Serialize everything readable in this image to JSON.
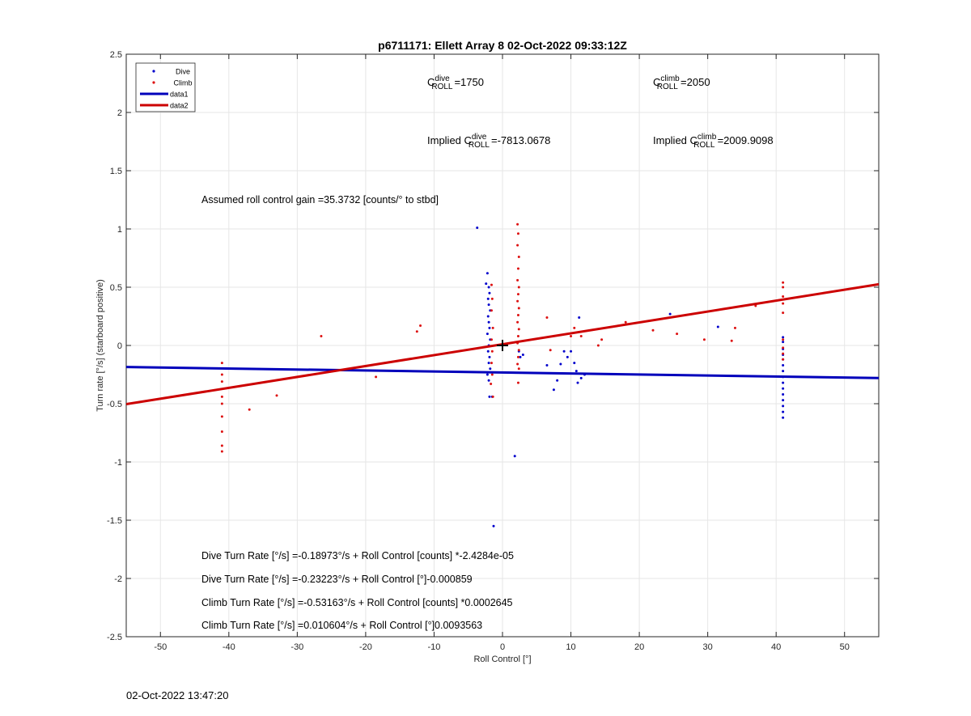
{
  "timestamp": "02-Oct-2022 13:47:20",
  "chart_data": {
    "type": "scatter",
    "title": "p6711171: Ellett Array 8 02-Oct-2022 09:33:12Z",
    "xlabel": "Roll Control [°]",
    "ylabel": "Turn rate [°/s] (starboard positive)",
    "xlim": [
      -55,
      55
    ],
    "ylim": [
      -2.5,
      2.5
    ],
    "x_ticks": [
      -50,
      -40,
      -30,
      -20,
      -10,
      0,
      10,
      20,
      30,
      40,
      50
    ],
    "y_ticks": [
      -2.5,
      -2,
      -1.5,
      -1,
      -0.5,
      0,
      0.5,
      1,
      1.5,
      2,
      2.5
    ],
    "grid": true,
    "legend_position": "top-left",
    "legend": [
      "Dive",
      "Climb",
      "data1",
      "data2"
    ],
    "colors": {
      "dive": "#0000cc",
      "climb": "#dd1111",
      "data1": "#0000bb",
      "data2": "#cc0000"
    },
    "series": [
      {
        "name": "Dive",
        "kind": "points",
        "points": [
          [
            -3.7,
            1.01
          ],
          [
            -2.2,
            0.62
          ],
          [
            -2.4,
            0.53
          ],
          [
            -2.0,
            0.5
          ],
          [
            -1.9,
            0.45
          ],
          [
            -2.1,
            0.4
          ],
          [
            -2.0,
            0.35
          ],
          [
            -1.8,
            0.3
          ],
          [
            -2.1,
            0.25
          ],
          [
            -2.0,
            0.2
          ],
          [
            -1.9,
            0.15
          ],
          [
            -2.2,
            0.1
          ],
          [
            -1.8,
            0.05
          ],
          [
            -2.0,
            0.0
          ],
          [
            -2.1,
            -0.05
          ],
          [
            -1.9,
            -0.1
          ],
          [
            -2.0,
            -0.15
          ],
          [
            -1.8,
            -0.2
          ],
          [
            -2.2,
            -0.25
          ],
          [
            -2.0,
            -0.3
          ],
          [
            -1.9,
            -0.44
          ],
          [
            -1.5,
            -0.44
          ],
          [
            2.4,
            -0.05
          ],
          [
            2.6,
            -0.1
          ],
          [
            3.0,
            -0.08
          ],
          [
            6.5,
            -0.17
          ],
          [
            7.5,
            -0.38
          ],
          [
            8.0,
            -0.3
          ],
          [
            8.5,
            -0.16
          ],
          [
            9.0,
            -0.05
          ],
          [
            9.5,
            -0.1
          ],
          [
            10.0,
            -0.05
          ],
          [
            10.5,
            -0.15
          ],
          [
            10.8,
            -0.22
          ],
          [
            11.0,
            -0.32
          ],
          [
            11.5,
            -0.28
          ],
          [
            12.0,
            -0.25
          ],
          [
            11.2,
            0.24
          ],
          [
            24.5,
            0.27
          ],
          [
            31.5,
            0.16
          ],
          [
            1.8,
            -0.95
          ],
          [
            -1.3,
            -1.55
          ],
          [
            41.0,
            0.07
          ],
          [
            41.0,
            0.03
          ],
          [
            41.0,
            -0.03
          ],
          [
            41.0,
            -0.08
          ],
          [
            41.0,
            -0.12
          ],
          [
            41.0,
            -0.17
          ],
          [
            41.0,
            -0.22
          ],
          [
            41.0,
            -0.27
          ],
          [
            41.0,
            -0.32
          ],
          [
            41.0,
            -0.37
          ],
          [
            41.0,
            -0.42
          ],
          [
            41.0,
            -0.47
          ],
          [
            41.0,
            -0.52
          ],
          [
            41.0,
            -0.57
          ],
          [
            41.0,
            -0.62
          ]
        ]
      },
      {
        "name": "Climb",
        "kind": "points",
        "points": [
          [
            -41.0,
            -0.15
          ],
          [
            -41.0,
            -0.25
          ],
          [
            -41.0,
            -0.31
          ],
          [
            -41.0,
            -0.44
          ],
          [
            -41.0,
            -0.5
          ],
          [
            -41.0,
            -0.61
          ],
          [
            -41.0,
            -0.74
          ],
          [
            -41.0,
            -0.86
          ],
          [
            -41.0,
            -0.91
          ],
          [
            -37.0,
            -0.55
          ],
          [
            -33.0,
            -0.43
          ],
          [
            -26.5,
            0.08
          ],
          [
            -18.5,
            -0.27
          ],
          [
            -12.5,
            0.12
          ],
          [
            -12.0,
            0.17
          ],
          [
            -1.6,
            0.52
          ],
          [
            -1.5,
            0.4
          ],
          [
            -1.6,
            0.3
          ],
          [
            -1.4,
            0.15
          ],
          [
            -1.6,
            0.05
          ],
          [
            -1.5,
            -0.05
          ],
          [
            -1.6,
            -0.15
          ],
          [
            -1.5,
            -0.25
          ],
          [
            -1.7,
            -0.33
          ],
          [
            -1.4,
            -0.44
          ],
          [
            2.2,
            1.04
          ],
          [
            2.3,
            0.96
          ],
          [
            2.2,
            0.86
          ],
          [
            2.4,
            0.76
          ],
          [
            2.3,
            0.66
          ],
          [
            2.2,
            0.56
          ],
          [
            2.4,
            0.5
          ],
          [
            2.3,
            0.44
          ],
          [
            2.2,
            0.38
          ],
          [
            2.4,
            0.32
          ],
          [
            2.3,
            0.26
          ],
          [
            2.2,
            0.2
          ],
          [
            2.4,
            0.14
          ],
          [
            2.3,
            0.08
          ],
          [
            2.2,
            0.02
          ],
          [
            2.4,
            -0.04
          ],
          [
            2.3,
            -0.1
          ],
          [
            2.2,
            -0.16
          ],
          [
            2.4,
            -0.2
          ],
          [
            2.3,
            -0.32
          ],
          [
            6.5,
            0.24
          ],
          [
            7.0,
            -0.04
          ],
          [
            10.0,
            0.08
          ],
          [
            10.5,
            0.15
          ],
          [
            11.5,
            0.08
          ],
          [
            14.0,
            0.0
          ],
          [
            14.5,
            0.05
          ],
          [
            18.0,
            0.2
          ],
          [
            22.0,
            0.13
          ],
          [
            25.5,
            0.1
          ],
          [
            29.5,
            0.05
          ],
          [
            33.5,
            0.04
          ],
          [
            34.0,
            0.15
          ],
          [
            37.0,
            0.34
          ],
          [
            41.0,
            0.54
          ],
          [
            41.0,
            0.5
          ],
          [
            41.0,
            0.42
          ],
          [
            41.0,
            0.36
          ],
          [
            41.0,
            0.28
          ],
          [
            41.0,
            0.05
          ],
          [
            41.0,
            -0.02
          ],
          [
            41.0,
            -0.07
          ],
          [
            41.0,
            -0.12
          ]
        ]
      },
      {
        "name": "data1",
        "kind": "line",
        "x": [
          -55,
          55
        ],
        "y": [
          -0.185,
          -0.2794
        ]
      },
      {
        "name": "data2",
        "kind": "line",
        "x": [
          -55,
          55
        ],
        "y": [
          -0.504,
          0.5252
        ]
      }
    ],
    "centroid_marker": [
      0,
      0
    ],
    "annotations": [
      {
        "kind": "param",
        "base": "C",
        "sup": "dive",
        "sub": "ROLL",
        "text": "=1750"
      },
      {
        "kind": "param",
        "base": "C",
        "sup": "climb",
        "sub": "ROLL",
        "text": "=2050"
      },
      {
        "kind": "param",
        "prefix": "Implied ",
        "base": "C",
        "sup": "dive",
        "sub": "ROLL",
        "text": "=-7813.0678"
      },
      {
        "kind": "param",
        "prefix": "Implied ",
        "base": "C",
        "sup": "climb",
        "sub": "ROLL",
        "text": "=2009.9098"
      },
      {
        "kind": "text",
        "text": "Assumed roll control gain =35.3732 [counts/° to stbd]"
      },
      {
        "kind": "text",
        "text": "Dive Turn Rate [°/s] =-0.18973°/s + Roll Control [counts] *-2.4284e-05"
      },
      {
        "kind": "text",
        "text": "Dive Turn Rate [°/s] =-0.23223°/s + Roll Control [°]-0.000859"
      },
      {
        "kind": "text",
        "text": "Climb Turn Rate [°/s] =-0.53163°/s + Roll Control [counts] *0.0002645"
      },
      {
        "kind": "text",
        "text": "Climb Turn Rate [°/s] =0.010604°/s + Roll Control [°]0.0093563"
      }
    ]
  }
}
